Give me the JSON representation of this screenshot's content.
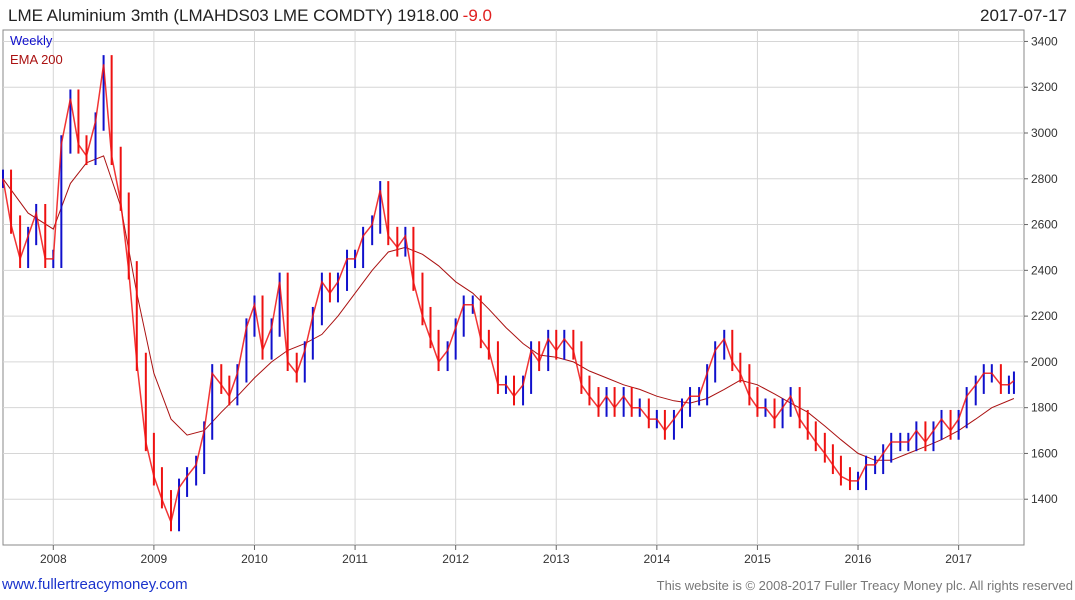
{
  "header": {
    "title": "LME Aluminium 3mth (LMAHDS03 LME COMDTY) 1918.00",
    "change": "-9.0",
    "date": "2017-07-17"
  },
  "legend": {
    "weekly": "Weekly",
    "ema": "EMA 200"
  },
  "footer": {
    "link": "www.fullertreacymoney.com",
    "copyright": "This website is © 2008-2017 Fuller Treacy Money plc. All rights reserved"
  },
  "colors": {
    "up": "#1010cc",
    "down": "#ee1111",
    "ema": "#aa1111",
    "grid": "#d6d6d6",
    "axis": "#666666"
  },
  "chart_data": {
    "type": "line",
    "title": "LME Aluminium 3mth (LMAHDS03 LME COMDTY) 1918.00 -9.0",
    "xlim": [
      2007.5,
      2017.65
    ],
    "ylim": [
      1200,
      3450
    ],
    "x_ticks": [
      2008,
      2009,
      2010,
      2011,
      2012,
      2013,
      2014,
      2015,
      2016,
      2017
    ],
    "y_ticks": [
      1400,
      1600,
      1800,
      2000,
      2200,
      2400,
      2600,
      2800,
      3000,
      3200,
      3400
    ],
    "grid": true,
    "legend_position": "top-left",
    "series": [
      {
        "name": "Weekly",
        "style": "bars",
        "x": [
          2007.5,
          2007.58,
          2007.67,
          2007.75,
          2007.83,
          2007.92,
          2008.0,
          2008.08,
          2008.17,
          2008.25,
          2008.33,
          2008.42,
          2008.5,
          2008.58,
          2008.67,
          2008.75,
          2008.83,
          2008.92,
          2009.0,
          2009.08,
          2009.17,
          2009.25,
          2009.33,
          2009.42,
          2009.5,
          2009.58,
          2009.67,
          2009.75,
          2009.83,
          2009.92,
          2010.0,
          2010.08,
          2010.17,
          2010.25,
          2010.33,
          2010.42,
          2010.5,
          2010.58,
          2010.67,
          2010.75,
          2010.83,
          2010.92,
          2011.0,
          2011.08,
          2011.17,
          2011.25,
          2011.33,
          2011.42,
          2011.5,
          2011.58,
          2011.67,
          2011.75,
          2011.83,
          2011.92,
          2012.0,
          2012.08,
          2012.17,
          2012.25,
          2012.33,
          2012.42,
          2012.5,
          2012.58,
          2012.67,
          2012.75,
          2012.83,
          2012.92,
          2013.0,
          2013.08,
          2013.17,
          2013.25,
          2013.33,
          2013.42,
          2013.5,
          2013.58,
          2013.67,
          2013.75,
          2013.83,
          2013.92,
          2014.0,
          2014.08,
          2014.17,
          2014.25,
          2014.33,
          2014.42,
          2014.5,
          2014.58,
          2014.67,
          2014.75,
          2014.83,
          2014.92,
          2015.0,
          2015.08,
          2015.17,
          2015.25,
          2015.33,
          2015.42,
          2015.5,
          2015.58,
          2015.67,
          2015.75,
          2015.83,
          2015.92,
          2016.0,
          2016.08,
          2016.17,
          2016.25,
          2016.33,
          2016.42,
          2016.5,
          2016.58,
          2016.67,
          2016.75,
          2016.83,
          2016.92,
          2017.0,
          2017.08,
          2017.17,
          2017.25,
          2017.33,
          2017.42,
          2017.5,
          2017.55
        ],
        "values": [
          2800,
          2600,
          2450,
          2550,
          2650,
          2450,
          2450,
          2950,
          3150,
          2950,
          2900,
          3050,
          3300,
          2900,
          2700,
          2400,
          2000,
          1650,
          1500,
          1400,
          1300,
          1450,
          1500,
          1550,
          1700,
          1950,
          1900,
          1850,
          1950,
          2150,
          2250,
          2050,
          2150,
          2350,
          2000,
          1950,
          2050,
          2200,
          2350,
          2300,
          2350,
          2450,
          2450,
          2550,
          2600,
          2750,
          2550,
          2500,
          2550,
          2350,
          2200,
          2100,
          2000,
          2050,
          2150,
          2250,
          2250,
          2100,
          2050,
          1900,
          1900,
          1850,
          1900,
          2050,
          2000,
          2100,
          2050,
          2100,
          2050,
          1900,
          1850,
          1800,
          1850,
          1800,
          1850,
          1800,
          1800,
          1750,
          1750,
          1700,
          1750,
          1800,
          1850,
          1850,
          1950,
          2050,
          2100,
          2000,
          1950,
          1850,
          1800,
          1800,
          1750,
          1800,
          1850,
          1750,
          1700,
          1650,
          1600,
          1550,
          1500,
          1480,
          1480,
          1550,
          1550,
          1600,
          1650,
          1650,
          1650,
          1700,
          1650,
          1700,
          1750,
          1700,
          1750,
          1850,
          1900,
          1950,
          1950,
          1900,
          1900,
          1918
        ]
      },
      {
        "name": "EMA 200",
        "style": "line",
        "x": [
          2007.5,
          2007.75,
          2008.0,
          2008.17,
          2008.33,
          2008.5,
          2008.67,
          2008.83,
          2009.0,
          2009.17,
          2009.33,
          2009.5,
          2009.67,
          2009.83,
          2010.0,
          2010.17,
          2010.33,
          2010.5,
          2010.67,
          2010.83,
          2011.0,
          2011.17,
          2011.33,
          2011.5,
          2011.67,
          2011.83,
          2012.0,
          2012.17,
          2012.33,
          2012.5,
          2012.67,
          2012.83,
          2013.0,
          2013.17,
          2013.33,
          2013.5,
          2013.67,
          2013.83,
          2014.0,
          2014.17,
          2014.33,
          2014.5,
          2014.67,
          2014.83,
          2015.0,
          2015.17,
          2015.33,
          2015.5,
          2015.67,
          2015.83,
          2016.0,
          2016.17,
          2016.33,
          2016.5,
          2016.67,
          2016.83,
          2017.0,
          2017.17,
          2017.33,
          2017.55
        ],
        "values": [
          2800,
          2650,
          2580,
          2780,
          2870,
          2900,
          2680,
          2300,
          1950,
          1750,
          1680,
          1700,
          1780,
          1850,
          1930,
          2000,
          2050,
          2080,
          2120,
          2200,
          2300,
          2400,
          2480,
          2500,
          2470,
          2420,
          2350,
          2300,
          2230,
          2150,
          2080,
          2030,
          2020,
          2000,
          1960,
          1930,
          1900,
          1880,
          1850,
          1830,
          1820,
          1840,
          1880,
          1920,
          1900,
          1860,
          1820,
          1780,
          1720,
          1660,
          1600,
          1570,
          1570,
          1600,
          1630,
          1660,
          1700,
          1750,
          1800,
          1840
        ]
      }
    ]
  }
}
